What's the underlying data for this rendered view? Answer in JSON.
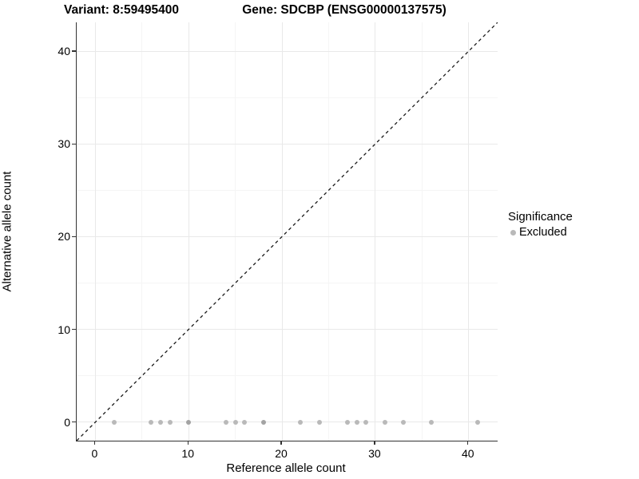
{
  "chart_data": {
    "type": "scatter",
    "title_variant": "Variant: 8:59495400",
    "title_gene": "Gene: SDCBP (ENSG00000137575)",
    "xlabel": "Reference allele count",
    "ylabel": "Alternative allele count",
    "x_ticks": [
      0,
      10,
      20,
      30,
      40
    ],
    "y_ticks": [
      0,
      10,
      20,
      30,
      40
    ],
    "minor_ticks": [
      5,
      15,
      25,
      35
    ],
    "xlim": [
      -2,
      43.1
    ],
    "ylim": [
      -2,
      43.1
    ],
    "grid": true,
    "identity_line": {
      "style": "dashed",
      "from": [
        -2,
        -2
      ],
      "to": [
        43.1,
        43.1
      ],
      "color": "#1a1a1a"
    },
    "series": [
      {
        "name": "Excluded",
        "points": [
          {
            "x": 2,
            "y": 0,
            "overlap": 1
          },
          {
            "x": 6,
            "y": 0,
            "overlap": 1
          },
          {
            "x": 7,
            "y": 0,
            "overlap": 1
          },
          {
            "x": 8,
            "y": 0,
            "overlap": 1
          },
          {
            "x": 10,
            "y": 0,
            "overlap": 2
          },
          {
            "x": 14,
            "y": 0,
            "overlap": 1
          },
          {
            "x": 15,
            "y": 0,
            "overlap": 1
          },
          {
            "x": 16,
            "y": 0,
            "overlap": 1
          },
          {
            "x": 18,
            "y": 0,
            "overlap": 2
          },
          {
            "x": 22,
            "y": 0,
            "overlap": 1
          },
          {
            "x": 24,
            "y": 0,
            "overlap": 1
          },
          {
            "x": 27,
            "y": 0,
            "overlap": 1
          },
          {
            "x": 28,
            "y": 0,
            "overlap": 1
          },
          {
            "x": 29,
            "y": 0,
            "overlap": 1
          },
          {
            "x": 31,
            "y": 0,
            "overlap": 1
          },
          {
            "x": 33,
            "y": 0,
            "overlap": 1
          },
          {
            "x": 36,
            "y": 0,
            "overlap": 1
          },
          {
            "x": 41,
            "y": 0,
            "overlap": 1
          }
        ]
      }
    ]
  },
  "legend": {
    "title": "Significance",
    "items": [
      {
        "label": "Excluded",
        "color": "#b9b9b9"
      }
    ]
  },
  "colors": {
    "point": "#b9b9b9",
    "point_overlap": "#a3a3a3",
    "grid_major": "#e9e9e9",
    "grid_minor": "#f5f5f5",
    "axis_line": "#333333",
    "identity_line": "#1a1a1a"
  }
}
